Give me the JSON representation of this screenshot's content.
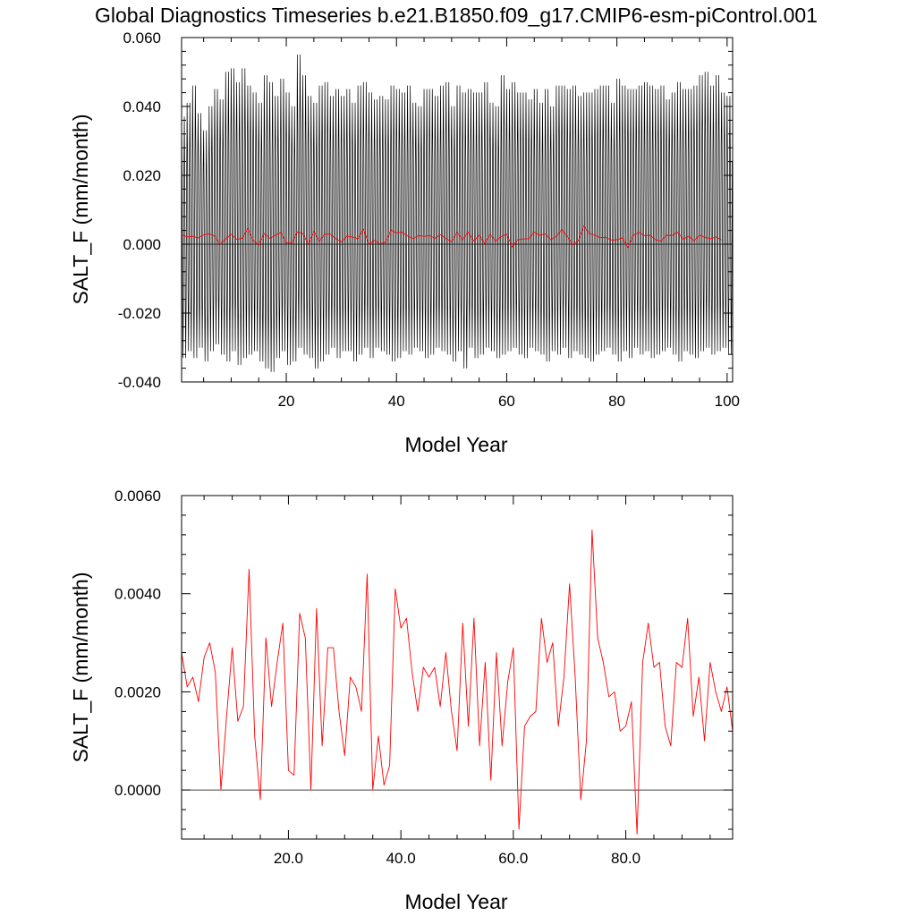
{
  "title": "Global Diagnostics Timeseries b.e21.B1850.f09_g17.CMIP6-esm-piControl.001",
  "chart_data": [
    {
      "type": "line",
      "title": "",
      "xlabel": "Model Year",
      "ylabel": "SALT_F (mm/month)",
      "xlim": [
        1,
        101
      ],
      "ylim": [
        -0.04,
        0.06
      ],
      "x_tick_labels": [
        "20",
        "40",
        "60",
        "80",
        "100"
      ],
      "x_tick_values": [
        20,
        40,
        60,
        80,
        100
      ],
      "y_tick_labels": [
        "-0.040",
        "-0.020",
        "0.000",
        "0.020",
        "0.040",
        "0.060"
      ],
      "y_tick_values": [
        -0.04,
        -0.02,
        0.0,
        0.02,
        0.04,
        0.06
      ],
      "reference_line": 0.0,
      "series": [
        {
          "color": "#000000",
          "kind": "monthly",
          "monthly_max": [
            0.037,
            0.041,
            0.046,
            0.038,
            0.033,
            0.04,
            0.045,
            0.042,
            0.05,
            0.051,
            0.047,
            0.051,
            0.046,
            0.044,
            0.041,
            0.049,
            0.047,
            0.043,
            0.048,
            0.044,
            0.04,
            0.055,
            0.049,
            0.043,
            0.041,
            0.046,
            0.047,
            0.043,
            0.045,
            0.043,
            0.045,
            0.041,
            0.046,
            0.047,
            0.044,
            0.042,
            0.043,
            0.042,
            0.046,
            0.045,
            0.044,
            0.046,
            0.041,
            0.04,
            0.045,
            0.045,
            0.043,
            0.046,
            0.047,
            0.04,
            0.046,
            0.044,
            0.045,
            0.044,
            0.044,
            0.047,
            0.041,
            0.04,
            0.049,
            0.045,
            0.047,
            0.044,
            0.044,
            0.042,
            0.045,
            0.041,
            0.045,
            0.04,
            0.046,
            0.046,
            0.045,
            0.046,
            0.043,
            0.044,
            0.044,
            0.045,
            0.046,
            0.046,
            0.041,
            0.048,
            0.046,
            0.045,
            0.045,
            0.046,
            0.047,
            0.046,
            0.045,
            0.046,
            0.042,
            0.044,
            0.047,
            0.045,
            0.045,
            0.046,
            0.049,
            0.05,
            0.046,
            0.049,
            0.044,
            0.043
          ],
          "monthly_min": [
            -0.033,
            -0.031,
            -0.033,
            -0.03,
            -0.034,
            -0.031,
            -0.029,
            -0.032,
            -0.034,
            -0.031,
            -0.035,
            -0.033,
            -0.032,
            -0.031,
            -0.034,
            -0.036,
            -0.037,
            -0.033,
            -0.031,
            -0.035,
            -0.034,
            -0.03,
            -0.032,
            -0.033,
            -0.036,
            -0.034,
            -0.032,
            -0.03,
            -0.033,
            -0.031,
            -0.031,
            -0.034,
            -0.032,
            -0.03,
            -0.033,
            -0.03,
            -0.031,
            -0.032,
            -0.034,
            -0.033,
            -0.031,
            -0.032,
            -0.03,
            -0.031,
            -0.033,
            -0.032,
            -0.03,
            -0.031,
            -0.032,
            -0.034,
            -0.031,
            -0.036,
            -0.03,
            -0.033,
            -0.032,
            -0.03,
            -0.031,
            -0.033,
            -0.032,
            -0.031,
            -0.03,
            -0.032,
            -0.033,
            -0.03,
            -0.031,
            -0.032,
            -0.034,
            -0.031,
            -0.032,
            -0.03,
            -0.033,
            -0.031,
            -0.032,
            -0.033,
            -0.034,
            -0.032,
            -0.031,
            -0.03,
            -0.032,
            -0.034,
            -0.031,
            -0.033,
            -0.03,
            -0.032,
            -0.031,
            -0.033,
            -0.032,
            -0.031,
            -0.03,
            -0.032,
            -0.034,
            -0.031,
            -0.032,
            -0.033,
            -0.031,
            -0.03,
            -0.032,
            -0.031,
            -0.03,
            -0.032
          ]
        },
        {
          "color": "#ff0000",
          "kind": "annual",
          "x_start": 1,
          "x_step": 1,
          "values": [
            0.0028,
            0.0021,
            0.0023,
            0.0018,
            0.0027,
            0.003,
            0.0024,
            0.0,
            0.0015,
            0.0029,
            0.0014,
            0.0017,
            0.0045,
            0.0011,
            -0.0002,
            0.0031,
            0.0017,
            0.0026,
            0.0034,
            0.0004,
            0.0003,
            0.0036,
            0.0031,
            0.0,
            0.0037,
            0.0009,
            0.0029,
            0.0029,
            0.0016,
            0.0007,
            0.0023,
            0.0021,
            0.0016,
            0.0044,
            0.0,
            0.0011,
            0.0001,
            0.0005,
            0.0041,
            0.0033,
            0.0035,
            0.0024,
            0.0016,
            0.0025,
            0.0023,
            0.0025,
            0.0017,
            0.0028,
            0.0016,
            0.0008,
            0.0034,
            0.0013,
            0.0035,
            0.0009,
            0.0026,
            0.0002,
            0.0028,
            0.0009,
            0.0022,
            0.0029,
            -0.0008,
            0.0013,
            0.0015,
            0.0016,
            0.0035,
            0.0026,
            0.003,
            0.0013,
            0.0023,
            0.0042,
            0.0023,
            -0.0002,
            0.001,
            0.0053,
            0.0031,
            0.0026,
            0.0019,
            0.002,
            0.0012,
            0.0013,
            0.0018,
            -0.0009,
            0.0026,
            0.0034,
            0.0025,
            0.0026,
            0.0013,
            0.0009,
            0.0026,
            0.0025,
            0.0035,
            0.0015,
            0.0023,
            0.001,
            0.0026,
            0.002,
            0.0016,
            0.0021,
            0.0012
          ]
        }
      ]
    },
    {
      "type": "line",
      "title": "",
      "xlabel": "Model Year",
      "ylabel": "SALT_F (mm/month)",
      "xlim": [
        1,
        99
      ],
      "ylim": [
        -0.001,
        0.006
      ],
      "x_tick_labels": [
        "20.0",
        "40.0",
        "60.0",
        "80.0"
      ],
      "x_tick_values": [
        20,
        40,
        60,
        80
      ],
      "y_tick_labels": [
        "0.0000",
        "0.0020",
        "0.0040",
        "0.0060"
      ],
      "y_tick_values": [
        0.0,
        0.002,
        0.004,
        0.006
      ],
      "reference_line": 0.0,
      "series": [
        {
          "color": "#ff0000",
          "x_start": 1,
          "x_step": 1,
          "values": [
            0.0028,
            0.0021,
            0.0023,
            0.0018,
            0.0027,
            0.003,
            0.0024,
            0.0,
            0.0015,
            0.0029,
            0.0014,
            0.0017,
            0.0045,
            0.0011,
            -0.0002,
            0.0031,
            0.0017,
            0.0026,
            0.0034,
            0.0004,
            0.0003,
            0.0036,
            0.0031,
            0.0,
            0.0037,
            0.0009,
            0.0029,
            0.0029,
            0.0016,
            0.0007,
            0.0023,
            0.0021,
            0.0016,
            0.0044,
            0.0,
            0.0011,
            0.0001,
            0.0005,
            0.0041,
            0.0033,
            0.0035,
            0.0024,
            0.0016,
            0.0025,
            0.0023,
            0.0025,
            0.0017,
            0.0028,
            0.0016,
            0.0008,
            0.0034,
            0.0013,
            0.0035,
            0.0009,
            0.0026,
            0.0002,
            0.0028,
            0.0009,
            0.0022,
            0.0029,
            -0.0008,
            0.0013,
            0.0015,
            0.0016,
            0.0035,
            0.0026,
            0.003,
            0.0013,
            0.0023,
            0.0042,
            0.0023,
            -0.0002,
            0.001,
            0.0053,
            0.0031,
            0.0026,
            0.0019,
            0.002,
            0.0012,
            0.0013,
            0.0018,
            -0.0009,
            0.0026,
            0.0034,
            0.0025,
            0.0026,
            0.0013,
            0.0009,
            0.0026,
            0.0025,
            0.0035,
            0.0015,
            0.0023,
            0.001,
            0.0026,
            0.002,
            0.0016,
            0.0021,
            0.0012
          ]
        }
      ]
    }
  ]
}
